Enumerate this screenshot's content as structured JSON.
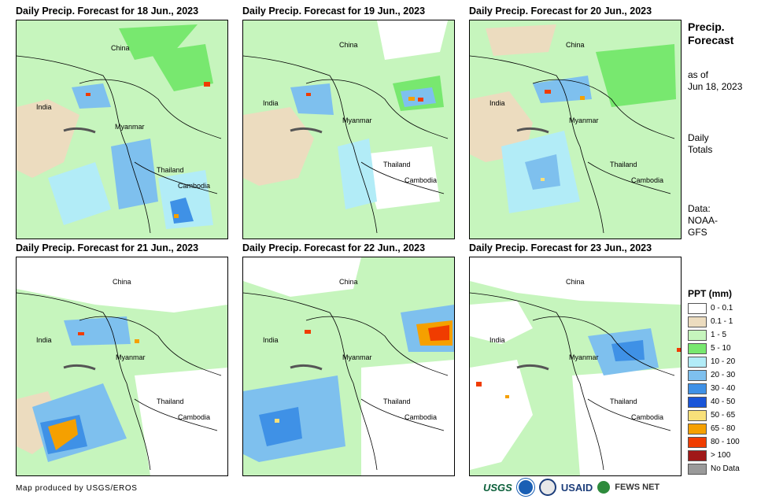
{
  "panels": [
    {
      "title": "Daily Precip. Forecast for 18 Jun., 2023",
      "labels": {
        "china": "China",
        "india": "India",
        "myanmar": "Myanmar",
        "thailand": "Thailand",
        "cambodia": "Cambodia"
      }
    },
    {
      "title": "Daily Precip. Forecast for 19 Jun., 2023",
      "labels": {
        "china": "China",
        "india": "India",
        "myanmar": "Myanmar",
        "thailand": "Thailand",
        "cambodia": "Cambodia"
      }
    },
    {
      "title": "Daily Precip. Forecast for 20 Jun., 2023",
      "labels": {
        "china": "China",
        "india": "India",
        "myanmar": "Myanmar",
        "thailand": "Thailand",
        "cambodia": "Cambodia"
      }
    },
    {
      "title": "Daily Precip. Forecast for 21 Jun., 2023",
      "labels": {
        "china": "China",
        "india": "India",
        "myanmar": "Myanmar",
        "thailand": "Thailand",
        "cambodia": "Cambodia"
      }
    },
    {
      "title": "Daily Precip. Forecast for 22 Jun., 2023",
      "labels": {
        "china": "China",
        "india": "India",
        "myanmar": "Myanmar",
        "thailand": "Thailand",
        "cambodia": "Cambodia"
      }
    },
    {
      "title": "Daily Precip. Forecast for 23 Jun., 2023",
      "labels": {
        "china": "China",
        "india": "India",
        "myanmar": "Myanmar",
        "thailand": "Thailand",
        "cambodia": "Cambodia"
      }
    }
  ],
  "sidebar": {
    "title_line1": "Precip.",
    "title_line2": "Forecast",
    "asof_line1": "as of",
    "asof_line2": "Jun 18, 2023",
    "daily_line1": "Daily",
    "daily_line2": "Totals",
    "data_line1": "Data:",
    "data_line2": "NOAA-",
    "data_line3": "GFS"
  },
  "legend": {
    "title": "PPT (mm)",
    "items": [
      {
        "label": "0 - 0.1",
        "color": "#ffffff"
      },
      {
        "label": "0.1 - 1",
        "color": "#ecdcbf"
      },
      {
        "label": "1 - 5",
        "color": "#c6f5bd"
      },
      {
        "label": "5 - 10",
        "color": "#78e86f"
      },
      {
        "label": "10 - 20",
        "color": "#b2ecf7"
      },
      {
        "label": "20 - 30",
        "color": "#7ec0ee"
      },
      {
        "label": "30 - 40",
        "color": "#3f91e6"
      },
      {
        "label": "40 - 50",
        "color": "#1955d8"
      },
      {
        "label": "50 - 65",
        "color": "#f8e07a"
      },
      {
        "label": "65 - 80",
        "color": "#f5a000"
      },
      {
        "label": "80 - 100",
        "color": "#f03c00"
      },
      {
        "label": "> 100",
        "color": "#a01818"
      },
      {
        "label": "No Data",
        "color": "#9a9a9a"
      }
    ]
  },
  "footer": {
    "credit": "Map produced by USGS/EROS"
  },
  "logos": {
    "usgs": "USGS",
    "usaid": "USAID",
    "fewsnet": "FEWS NET"
  }
}
